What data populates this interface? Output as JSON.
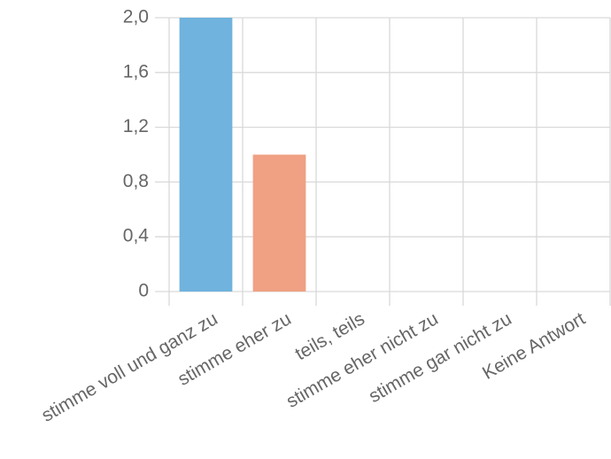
{
  "chart_data": {
    "type": "bar",
    "categories": [
      "stimme voll und ganz zu",
      "stimme eher zu",
      "teils, teils",
      "stimme eher nicht zu",
      "stimme gar nicht zu",
      "Keine Antwort"
    ],
    "values": [
      2,
      1,
      0,
      0,
      0,
      0
    ],
    "colors": [
      "#6fb3de",
      "#f0a083",
      "#6fb3de",
      "#6fb3de",
      "#6fb3de",
      "#6fb3de"
    ],
    "ylim": [
      0,
      2
    ],
    "yticks": [
      0,
      {
        "value": 0.4,
        "label": "0,4"
      },
      {
        "value": 0.8,
        "label": "0,8"
      },
      {
        "value": 1.2,
        "label": "1,2"
      },
      {
        "value": 1.6,
        "label": "1,6"
      },
      {
        "value": 2,
        "label": "2,0"
      }
    ],
    "grid": true
  }
}
